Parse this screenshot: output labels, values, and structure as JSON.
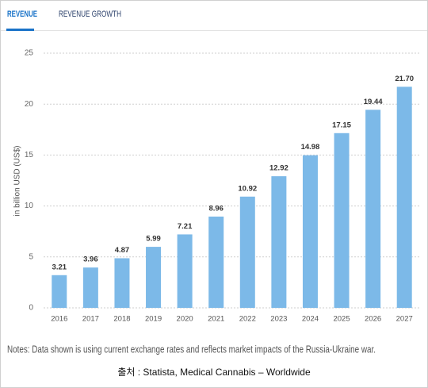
{
  "tabs": [
    "REVENUE",
    "REVENUE GROWTH"
  ],
  "chart_data": {
    "type": "bar",
    "y_label": "in billion USD (US$)",
    "categories": [
      "2016",
      "2017",
      "2018",
      "2019",
      "2020",
      "2021",
      "2022",
      "2023",
      "2024",
      "2025",
      "2026",
      "2027"
    ],
    "values": [
      3.21,
      3.96,
      4.87,
      5.99,
      7.21,
      8.96,
      10.92,
      12.92,
      14.98,
      17.15,
      19.44,
      21.7
    ],
    "value_labels": [
      "3.21",
      "3.96",
      "4.87",
      "5.99",
      "7.21",
      "8.96",
      "10.92",
      "12.92",
      "14.98",
      "17.15",
      "19.44",
      "21.70"
    ],
    "color": "#7cb9e8",
    "ylim": [
      0,
      25
    ],
    "yticks": [
      0,
      5,
      10,
      15,
      20,
      25
    ],
    "grid": true
  },
  "notes": "Notes: Data shown is using current exchange rates and reflects market impacts of the Russia-Ukraine war.",
  "source": "출처 : Statista, Medical Cannabis – Worldwide"
}
